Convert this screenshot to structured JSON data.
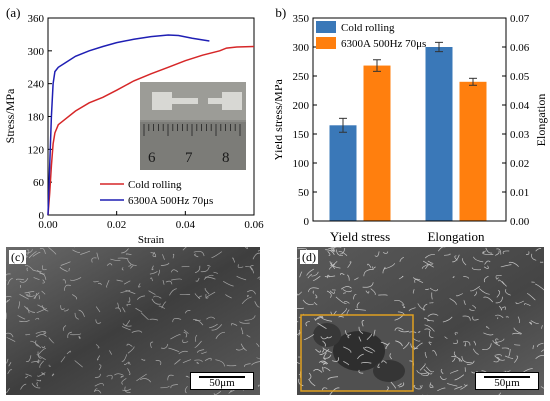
{
  "panels": {
    "a": {
      "label": "(a)",
      "legend": [
        "Cold rolling",
        "6300A  500Hz  70μs"
      ],
      "inset": {
        "ruler_numbers": [
          "6",
          "7",
          "8"
        ]
      }
    },
    "b": {
      "label": "(b)"
    },
    "c": {
      "label": "(c)",
      "scale_bar": "50μm"
    },
    "d": {
      "label": "(d)",
      "scale_bar": "50μm",
      "inset_box_color": "#e0a020"
    }
  },
  "colors": {
    "red": "#d62728",
    "blue": "#1f1fb4",
    "bar_blue": "#3a78b8",
    "bar_orange": "#ff7f0e"
  },
  "chart_data": [
    {
      "type": "line",
      "xlabel": "Strain",
      "ylabel": "Stress/MPa",
      "xlim": [
        0.0,
        0.06
      ],
      "ylim": [
        0,
        360
      ],
      "xticks": [
        "0.00",
        "0.02",
        "0.04",
        "0.06"
      ],
      "yticks": [
        "0",
        "60",
        "120",
        "180",
        "240",
        "300",
        "360"
      ],
      "series": [
        {
          "name": "Cold rolling",
          "color": "#d62728",
          "x": [
            0,
            0.0005,
            0.001,
            0.0015,
            0.002,
            0.003,
            0.005,
            0.008,
            0.012,
            0.016,
            0.02,
            0.025,
            0.03,
            0.035,
            0.04,
            0.045,
            0.05,
            0.052,
            0.055,
            0.06
          ],
          "y": [
            0,
            40,
            90,
            130,
            150,
            165,
            175,
            190,
            205,
            215,
            228,
            245,
            258,
            270,
            282,
            292,
            300,
            305,
            307,
            308
          ]
        },
        {
          "name": "6300A  500Hz  70μs",
          "color": "#1f1fb4",
          "x": [
            0,
            0.0005,
            0.001,
            0.0015,
            0.002,
            0.003,
            0.005,
            0.008,
            0.012,
            0.016,
            0.02,
            0.025,
            0.03,
            0.035,
            0.038,
            0.042,
            0.047
          ],
          "y": [
            0,
            90,
            180,
            240,
            262,
            270,
            278,
            290,
            300,
            308,
            315,
            321,
            326,
            329,
            328,
            323,
            318
          ]
        }
      ]
    },
    {
      "type": "bar",
      "categories": [
        "Yield stress",
        "Elongation"
      ],
      "ylabel_left": "Yield stress/MPa",
      "ylabel_right": "Elongation",
      "ylim_left": [
        0,
        350
      ],
      "ylim_right": [
        0,
        0.07
      ],
      "yticks_left": [
        "0",
        "50",
        "100",
        "150",
        "200",
        "250",
        "300",
        "350"
      ],
      "yticks_right": [
        "0.00",
        "0.01",
        "0.02",
        "0.03",
        "0.04",
        "0.05",
        "0.06",
        "0.07"
      ],
      "legend_position": "top-left",
      "series": [
        {
          "name": "Cold rolling",
          "color": "#3a78b8",
          "values": [
            165,
            0.06
          ],
          "errors": [
            12,
            0.0016
          ]
        },
        {
          "name": "6300A  500Hz  70μs",
          "color": "#ff7f0e",
          "values": [
            268,
            0.048
          ],
          "errors": [
            10,
            0.0012
          ]
        }
      ]
    }
  ]
}
